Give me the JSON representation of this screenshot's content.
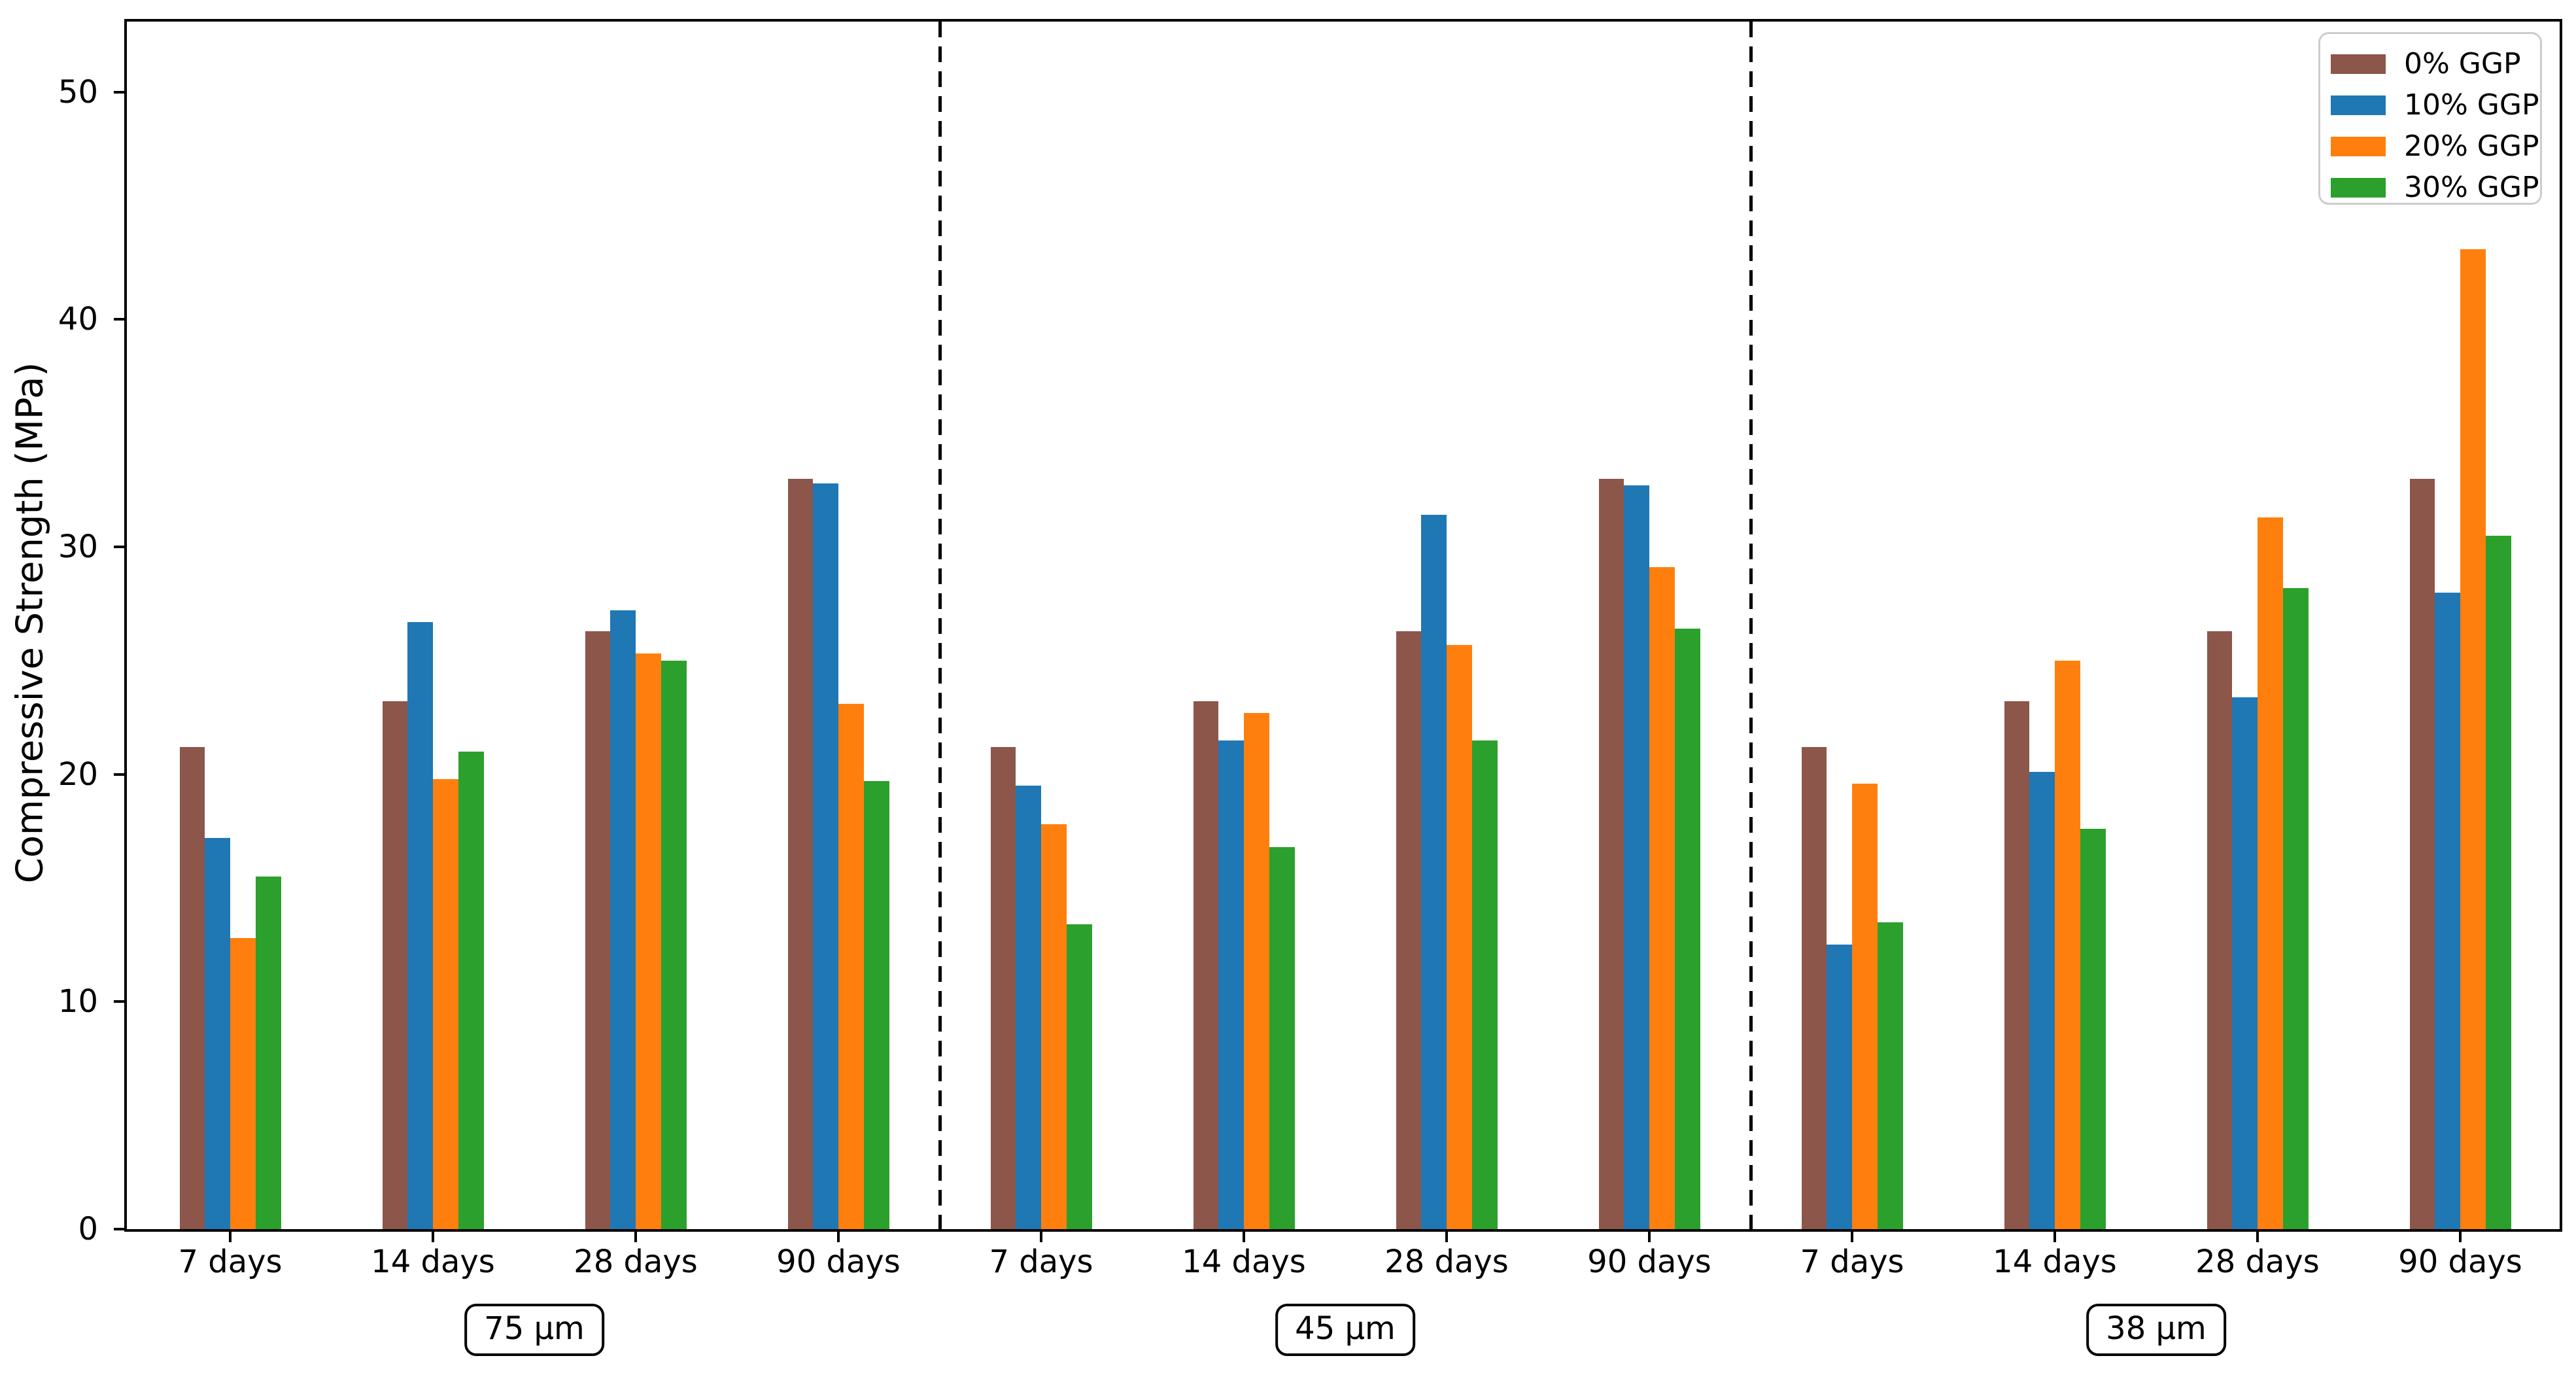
{
  "chart_data": {
    "type": "bar",
    "title": "",
    "xlabel": "",
    "ylabel": "Compressive Strength (MPa)",
    "ylim": [
      0,
      53.1
    ],
    "yticks": [
      0,
      10,
      20,
      30,
      40,
      50
    ],
    "grid": false,
    "legend_position": "upper right",
    "sections": [
      {
        "label": "75 μm",
        "categories": [
          "7 days",
          "14 days",
          "28 days",
          "90 days"
        ]
      },
      {
        "label": "45 μm",
        "categories": [
          "7 days",
          "14 days",
          "28 days",
          "90 days"
        ]
      },
      {
        "label": "38 μm",
        "categories": [
          "7 days",
          "14 days",
          "28 days",
          "90 days"
        ]
      }
    ],
    "series": [
      {
        "name": "0% GGP",
        "color": "#8c564b",
        "values_by_section": [
          [
            21.2,
            23.2,
            26.3,
            33.0
          ],
          [
            21.2,
            23.2,
            26.3,
            33.0
          ],
          [
            21.2,
            23.2,
            26.3,
            33.0
          ]
        ]
      },
      {
        "name": "10% GGP",
        "color": "#1f77b4",
        "values_by_section": [
          [
            17.2,
            26.7,
            27.2,
            32.8
          ],
          [
            19.5,
            21.5,
            31.4,
            32.7
          ],
          [
            12.5,
            20.1,
            23.4,
            28.0
          ]
        ]
      },
      {
        "name": "20% GGP",
        "color": "#ff7f0e",
        "values_by_section": [
          [
            12.8,
            19.8,
            25.3,
            23.1
          ],
          [
            17.8,
            22.7,
            25.7,
            29.1
          ],
          [
            19.6,
            25.0,
            31.3,
            43.1
          ]
        ]
      },
      {
        "name": "30% GGP",
        "color": "#2ca02c",
        "values_by_section": [
          [
            15.5,
            21.0,
            25.0,
            19.7
          ],
          [
            13.4,
            16.8,
            21.5,
            26.4
          ],
          [
            13.5,
            17.6,
            28.2,
            30.5
          ]
        ]
      }
    ]
  }
}
